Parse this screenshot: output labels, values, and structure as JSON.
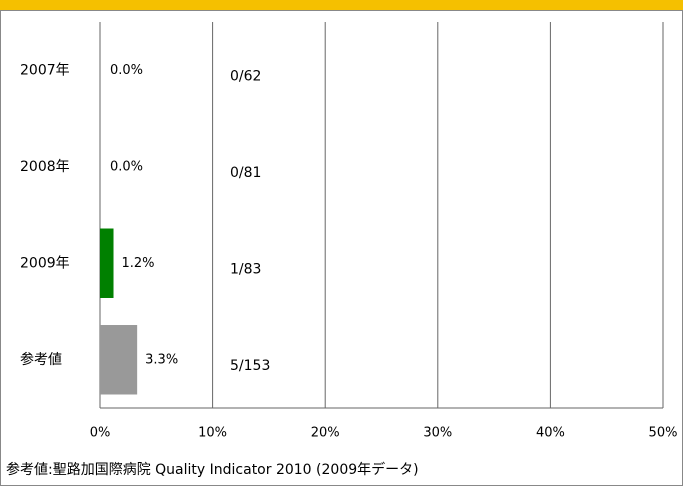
{
  "chart_data": {
    "type": "barh",
    "categories": [
      "2007年",
      "2008年",
      "2009年",
      "参考値"
    ],
    "values": [
      0.0,
      0.0,
      1.2,
      3.3
    ],
    "value_labels": [
      "0.0%",
      "0.0%",
      "1.2%",
      "3.3%"
    ],
    "annotations": [
      "0/62",
      "0/81",
      "1/83",
      "5/153"
    ],
    "colors": [
      "#008000",
      "#008000",
      "#008000",
      "#999999"
    ],
    "xlim": [
      0,
      50
    ],
    "xticks": [
      {
        "value": 0,
        "label": "0%"
      },
      {
        "value": 10,
        "label": "10%"
      },
      {
        "value": 20,
        "label": "20%"
      },
      {
        "value": 30,
        "label": "30%"
      },
      {
        "value": 40,
        "label": "40%"
      },
      {
        "value": 50,
        "label": "50%"
      }
    ],
    "grid": true,
    "note": "参考値:聖路加国際病院  Quality Indicator  2010 (2009年データ)"
  }
}
